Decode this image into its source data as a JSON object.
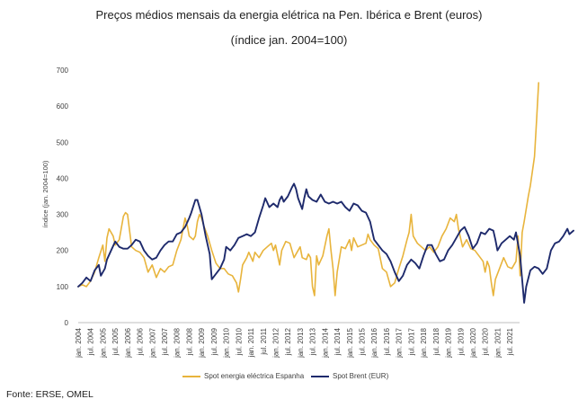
{
  "header": {
    "title": "Preços médios mensais da energia elétrica na Pen. Ibérica e Brent (euros)",
    "subtitle": "(índice jan. 2004=100)"
  },
  "footer": {
    "source": "Fonte: ERSE, OMEL"
  },
  "chart_data": {
    "type": "line",
    "ylabel": "índice (jan. 2004=100)",
    "ylim": [
      0,
      700
    ],
    "yticks": [
      0,
      100,
      200,
      300,
      400,
      500,
      600,
      700
    ],
    "grid": false,
    "legend_position": "bottom",
    "xtick_labels": [
      "jan. 2004",
      "jul. 2004",
      "jan. 2005",
      "jul. 2005",
      "jan. 2006",
      "jul. 2006",
      "jan. 2007",
      "jul. 2007",
      "jan. 2008",
      "jul. 2008",
      "jan. 2009",
      "jul. 2009",
      "jan. 2010",
      "jul. 2010",
      "jan. 2011",
      "jul. 2011",
      "jan. 2012",
      "jul. 2012",
      "jan. 2013",
      "jul. 2013",
      "jan. 2014",
      "jul. 2014",
      "jan. 2015",
      "jul. 2015",
      "jan. 2016",
      "jul. 2016",
      "jan. 2017",
      "jul. 2017",
      "jan. 2018",
      "jul. 2018",
      "jan. 2019",
      "jul. 2019",
      "jan. 2020",
      "jul. 2020",
      "jan. 2021",
      "jul. 2021"
    ],
    "series": [
      {
        "name": "Spot energia eléctrica Espanha",
        "color": "#e8b43c",
        "points": [
          [
            0,
            100
          ],
          [
            2,
            105
          ],
          [
            4,
            100
          ],
          [
            6,
            115
          ],
          [
            8,
            140
          ],
          [
            10,
            180
          ],
          [
            12,
            215
          ],
          [
            13,
            170
          ],
          [
            14,
            235
          ],
          [
            15,
            260
          ],
          [
            17,
            240
          ],
          [
            18,
            215
          ],
          [
            20,
            230
          ],
          [
            22,
            295
          ],
          [
            23,
            305
          ],
          [
            24,
            300
          ],
          [
            26,
            210
          ],
          [
            28,
            200
          ],
          [
            30,
            195
          ],
          [
            32,
            180
          ],
          [
            34,
            140
          ],
          [
            36,
            160
          ],
          [
            38,
            125
          ],
          [
            40,
            150
          ],
          [
            42,
            140
          ],
          [
            44,
            155
          ],
          [
            46,
            160
          ],
          [
            48,
            200
          ],
          [
            50,
            230
          ],
          [
            52,
            290
          ],
          [
            53,
            270
          ],
          [
            54,
            240
          ],
          [
            56,
            230
          ],
          [
            57,
            240
          ],
          [
            58,
            280
          ],
          [
            59,
            300
          ],
          [
            60,
            290
          ],
          [
            61,
            270
          ],
          [
            63,
            240
          ],
          [
            65,
            200
          ],
          [
            67,
            165
          ],
          [
            69,
            150
          ],
          [
            71,
            150
          ],
          [
            73,
            135
          ],
          [
            75,
            130
          ],
          [
            77,
            110
          ],
          [
            78,
            85
          ],
          [
            79,
            120
          ],
          [
            80,
            160
          ],
          [
            82,
            180
          ],
          [
            83,
            195
          ],
          [
            85,
            170
          ],
          [
            86,
            195
          ],
          [
            88,
            180
          ],
          [
            90,
            200
          ],
          [
            92,
            210
          ],
          [
            94,
            220
          ],
          [
            95,
            200
          ],
          [
            96,
            215
          ],
          [
            98,
            160
          ],
          [
            99,
            200
          ],
          [
            101,
            225
          ],
          [
            103,
            220
          ],
          [
            105,
            180
          ],
          [
            107,
            200
          ],
          [
            108,
            210
          ],
          [
            109,
            180
          ],
          [
            111,
            175
          ],
          [
            112,
            190
          ],
          [
            113,
            180
          ],
          [
            114,
            100
          ],
          [
            115,
            75
          ],
          [
            116,
            185
          ],
          [
            117,
            160
          ],
          [
            119,
            185
          ],
          [
            121,
            240
          ],
          [
            122,
            260
          ],
          [
            123,
            200
          ],
          [
            124,
            150
          ],
          [
            125,
            75
          ],
          [
            126,
            140
          ],
          [
            128,
            210
          ],
          [
            130,
            205
          ],
          [
            132,
            230
          ],
          [
            133,
            200
          ],
          [
            134,
            235
          ],
          [
            136,
            210
          ],
          [
            138,
            215
          ],
          [
            140,
            220
          ],
          [
            141,
            245
          ],
          [
            142,
            230
          ],
          [
            144,
            215
          ],
          [
            146,
            205
          ],
          [
            148,
            150
          ],
          [
            150,
            140
          ],
          [
            152,
            100
          ],
          [
            154,
            110
          ],
          [
            156,
            150
          ],
          [
            158,
            185
          ],
          [
            160,
            230
          ],
          [
            161,
            250
          ],
          [
            162,
            300
          ],
          [
            163,
            240
          ],
          [
            165,
            220
          ],
          [
            167,
            210
          ],
          [
            169,
            200
          ],
          [
            171,
            210
          ],
          [
            173,
            195
          ],
          [
            175,
            210
          ],
          [
            177,
            240
          ],
          [
            179,
            260
          ],
          [
            181,
            290
          ],
          [
            183,
            280
          ],
          [
            184,
            300
          ],
          [
            185,
            260
          ],
          [
            187,
            210
          ],
          [
            189,
            230
          ],
          [
            191,
            205
          ],
          [
            193,
            200
          ],
          [
            195,
            185
          ],
          [
            197,
            170
          ],
          [
            198,
            140
          ],
          [
            199,
            170
          ],
          [
            200,
            155
          ],
          [
            201,
            110
          ],
          [
            202,
            75
          ],
          [
            203,
            120
          ],
          [
            205,
            150
          ],
          [
            207,
            180
          ],
          [
            209,
            155
          ],
          [
            211,
            150
          ],
          [
            213,
            170
          ],
          [
            214,
            240
          ],
          [
            215,
            130
          ],
          [
            216,
            250
          ],
          [
            217,
            280
          ],
          [
            219,
            350
          ],
          [
            220,
            380
          ],
          [
            221,
            420
          ],
          [
            222,
            460
          ],
          [
            223,
            560
          ],
          [
            224,
            665
          ]
        ]
      },
      {
        "name": "Spot Brent (EUR)",
        "color": "#1e2a6c",
        "points": [
          [
            0,
            100
          ],
          [
            2,
            110
          ],
          [
            4,
            125
          ],
          [
            6,
            115
          ],
          [
            8,
            145
          ],
          [
            10,
            160
          ],
          [
            11,
            130
          ],
          [
            13,
            150
          ],
          [
            14,
            175
          ],
          [
            16,
            200
          ],
          [
            18,
            225
          ],
          [
            20,
            210
          ],
          [
            22,
            205
          ],
          [
            24,
            205
          ],
          [
            26,
            215
          ],
          [
            28,
            230
          ],
          [
            30,
            225
          ],
          [
            32,
            200
          ],
          [
            34,
            185
          ],
          [
            36,
            175
          ],
          [
            38,
            180
          ],
          [
            40,
            200
          ],
          [
            42,
            215
          ],
          [
            44,
            225
          ],
          [
            46,
            225
          ],
          [
            48,
            245
          ],
          [
            50,
            250
          ],
          [
            52,
            265
          ],
          [
            54,
            290
          ],
          [
            55,
            305
          ],
          [
            57,
            340
          ],
          [
            58,
            340
          ],
          [
            60,
            300
          ],
          [
            62,
            240
          ],
          [
            64,
            190
          ],
          [
            65,
            120
          ],
          [
            67,
            135
          ],
          [
            69,
            150
          ],
          [
            71,
            175
          ],
          [
            72,
            210
          ],
          [
            74,
            200
          ],
          [
            76,
            215
          ],
          [
            78,
            235
          ],
          [
            80,
            240
          ],
          [
            82,
            245
          ],
          [
            84,
            240
          ],
          [
            86,
            250
          ],
          [
            88,
            290
          ],
          [
            90,
            325
          ],
          [
            91,
            345
          ],
          [
            93,
            320
          ],
          [
            95,
            330
          ],
          [
            97,
            320
          ],
          [
            98,
            340
          ],
          [
            99,
            350
          ],
          [
            100,
            335
          ],
          [
            102,
            350
          ],
          [
            104,
            375
          ],
          [
            105,
            385
          ],
          [
            106,
            370
          ],
          [
            107,
            345
          ],
          [
            109,
            315
          ],
          [
            110,
            345
          ],
          [
            111,
            370
          ],
          [
            112,
            350
          ],
          [
            114,
            340
          ],
          [
            116,
            335
          ],
          [
            118,
            355
          ],
          [
            120,
            335
          ],
          [
            122,
            330
          ],
          [
            124,
            335
          ],
          [
            126,
            330
          ],
          [
            128,
            335
          ],
          [
            130,
            320
          ],
          [
            132,
            310
          ],
          [
            134,
            330
          ],
          [
            136,
            325
          ],
          [
            138,
            310
          ],
          [
            140,
            305
          ],
          [
            142,
            280
          ],
          [
            144,
            230
          ],
          [
            146,
            215
          ],
          [
            148,
            200
          ],
          [
            150,
            190
          ],
          [
            152,
            170
          ],
          [
            154,
            140
          ],
          [
            156,
            115
          ],
          [
            158,
            130
          ],
          [
            160,
            160
          ],
          [
            162,
            175
          ],
          [
            164,
            165
          ],
          [
            166,
            150
          ],
          [
            168,
            185
          ],
          [
            170,
            215
          ],
          [
            172,
            215
          ],
          [
            174,
            190
          ],
          [
            176,
            170
          ],
          [
            178,
            175
          ],
          [
            180,
            200
          ],
          [
            182,
            215
          ],
          [
            184,
            235
          ],
          [
            186,
            255
          ],
          [
            188,
            265
          ],
          [
            190,
            240
          ],
          [
            192,
            205
          ],
          [
            194,
            220
          ],
          [
            196,
            250
          ],
          [
            198,
            245
          ],
          [
            200,
            260
          ],
          [
            202,
            255
          ],
          [
            203,
            230
          ],
          [
            204,
            200
          ],
          [
            206,
            220
          ],
          [
            208,
            230
          ],
          [
            210,
            240
          ],
          [
            212,
            230
          ],
          [
            213,
            250
          ],
          [
            215,
            185
          ],
          [
            217,
            55
          ],
          [
            218,
            100
          ],
          [
            220,
            145
          ],
          [
            222,
            155
          ],
          [
            224,
            150
          ],
          [
            226,
            135
          ],
          [
            228,
            150
          ],
          [
            230,
            200
          ],
          [
            232,
            220
          ],
          [
            234,
            225
          ],
          [
            236,
            240
          ],
          [
            238,
            260
          ],
          [
            239,
            245
          ],
          [
            240,
            250
          ],
          [
            241,
            255
          ]
        ]
      }
    ]
  }
}
